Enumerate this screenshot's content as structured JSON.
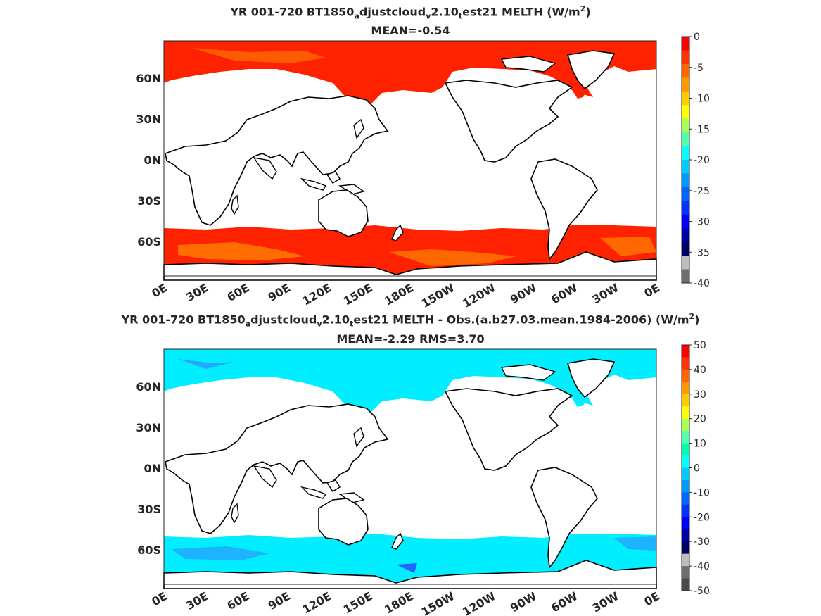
{
  "panels": [
    {
      "title_parts": {
        "a": "YR 001-720 BT1850",
        "sub1": "a",
        "b": "djustcloud",
        "sub2": "v",
        "c": "2.10",
        "sub3": "t",
        "d": "est21  MELTH (W/m",
        "sup": "2",
        "e": ")"
      },
      "subtitle": "MEAN=-0.54",
      "lat_labels": [
        "60N",
        "30N",
        "0N",
        "30S",
        "60S"
      ],
      "lon_labels": [
        "0E",
        "30E",
        "60E",
        "90E",
        "120E",
        "150E",
        "180E",
        "150W",
        "120W",
        "90W",
        "60W",
        "30W",
        "0E"
      ],
      "colorbar_labels": [
        "0",
        "-5",
        "-10",
        "-15",
        "-20",
        "-25",
        "-30",
        "-35",
        "-40"
      ],
      "colorbar_colors": [
        "#ff0000",
        "#ff3300",
        "#ff6600",
        "#ff9900",
        "#ffcc00",
        "#ffff00",
        "#aaff55",
        "#55ffaa",
        "#00ffff",
        "#00ccff",
        "#0099ff",
        "#0066ff",
        "#0033ff",
        "#0000ff",
        "#0000aa",
        "#000066",
        "#bdbdbd",
        "#6e6e6e"
      ]
    },
    {
      "title_parts": {
        "a": "YR 001-720 BT1850",
        "sub1": "a",
        "b": "djustcloud",
        "sub2": "v",
        "c": "2.10",
        "sub3": "t",
        "d": "est21 MELTH - Obs.(a.b27.03.mean.1984-2006) (W/m",
        "sup": "2",
        "e": ")"
      },
      "subtitle": "MEAN=-2.29 RMS=3.70",
      "lat_labels": [
        "60N",
        "30N",
        "0N",
        "30S",
        "60S"
      ],
      "lon_labels": [
        "0E",
        "30E",
        "60E",
        "90E",
        "120E",
        "150E",
        "180E",
        "150W",
        "120W",
        "90W",
        "60W",
        "30W",
        "0E"
      ],
      "colorbar_labels": [
        "50",
        "40",
        "30",
        "20",
        "10",
        "0",
        "-10",
        "-20",
        "-30",
        "-40",
        "-50"
      ],
      "colorbar_colors": [
        "#ff0000",
        "#ff3300",
        "#ff6600",
        "#ff9900",
        "#ffcc00",
        "#ffff00",
        "#aaff55",
        "#55ffaa",
        "#00ffaa",
        "#00ffff",
        "#00ccff",
        "#0099ff",
        "#0066ff",
        "#0033ff",
        "#0000ff",
        "#0000aa",
        "#000066",
        "#bdbdbd",
        "#6e6e6e",
        "#4a4a4a"
      ]
    }
  ],
  "colors": {
    "melt_red": "#ff2200",
    "melt_orange": "#ff6a00",
    "diff_cyan": "#00eeff",
    "diff_blue": "#22a8ff",
    "coast": "#000000"
  }
}
